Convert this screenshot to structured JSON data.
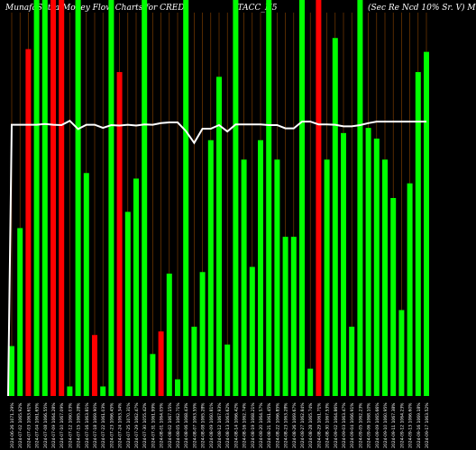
{
  "header": {
    "left": "MunafaSutra Money Flow Charts for CRED",
    "middle": "ITACC_N5",
    "right": "(Sec Re Ncd 10% Sr. V) M"
  },
  "colors": {
    "background": "#000000",
    "up": "#00ff00",
    "down": "#ff0000",
    "grid": "#8b4500",
    "price_line": "#ffffff"
  },
  "chart_data": {
    "type": "bar",
    "title": "",
    "ylim": [
      0,
      100
    ],
    "categories": [
      "2024-06-26 1071.29%",
      "2024-07-02 1065.92%",
      "2024-07-03 1063.61%",
      "2024-07-04 1061.65%",
      "2024-07-08 1066.55%",
      "2024-07-09 1064.28%",
      "2024-07-10 1067.09%",
      "2024-07-12 1060.03%",
      "2024-07-15 1065.28%",
      "2024-07-16 1063.81%",
      "2024-07-18 1069.90%",
      "2024-07-22 1061.03%",
      "2024-07-23 1066.45%",
      "2024-07-24 1063.34%",
      "2024-07-25 1070.31%",
      "2024-07-29 1062.47%",
      "2024-07-30 1055.42%",
      "2024-07-31 1061.99%",
      "2024-08-01 1064.05%",
      "2024-08-02 1067.15%",
      "2024-08-05 1062.71%",
      "2024-08-06 1068.43%",
      "2024-08-07 1063.55%",
      "2024-08-08 1065.28%",
      "2024-08-09 1060.81%",
      "2024-08-12 1067.93%",
      "2024-08-13 1063.62%",
      "2024-08-14 1066.42%",
      "2024-08-16 1062.74%",
      "2024-08-19 1068.21%",
      "2024-08-20 1064.57%",
      "2024-08-21 1061.45%",
      "2024-08-22 1066.85%",
      "2024-08-23 1063.28%",
      "2024-08-26 1069.67%",
      "2024-08-27 1062.84%",
      "2024-08-28 1065.74%",
      "2024-08-29 1061.71%",
      "2024-08-30 1067.53%",
      "2024-09-02 1064.86%",
      "2024-09-03 1063.47%",
      "2024-09-04 1066.91%",
      "2024-09-05 1062.23%",
      "2024-09-06 1068.10%",
      "2024-09-09 1065.66%",
      "2024-09-10 1060.95%",
      "2024-09-11 1067.38%",
      "2024-09-12 1064.23%",
      "2024-09-13 1066.60%",
      "2024-09-16 1069.18%",
      "2024-09-17 1063.52%"
    ],
    "series": [
      {
        "values": [
          12.6,
          42.4,
          87.6,
          100,
          100,
          100,
          100,
          2.4,
          100,
          56.3,
          15.4,
          2.4,
          100,
          81.8,
          46.5,
          54.9,
          100,
          10.6,
          16.3,
          30.9,
          4.2,
          100,
          17.5,
          31.3,
          64.6,
          80.6,
          13,
          100,
          59.7,
          32.6,
          64.6,
          100,
          59.7,
          40.2,
          40.2,
          100,
          6.9,
          100,
          59.7,
          90.4,
          66.4,
          17.5,
          100,
          67.7,
          65,
          59.7,
          50,
          21.7,
          53.7,
          81.8,
          86.9
        ],
        "colors": [
          "up",
          "up",
          "down",
          "up",
          "up",
          "down",
          "down",
          "up",
          "up",
          "up",
          "down",
          "up",
          "up",
          "down",
          "up",
          "up",
          "up",
          "up",
          "down",
          "up",
          "up",
          "up",
          "up",
          "up",
          "up",
          "up",
          "up",
          "up",
          "up",
          "up",
          "up",
          "up",
          "up",
          "up",
          "up",
          "up",
          "up",
          "down",
          "up",
          "up",
          "up",
          "up",
          "up",
          "up",
          "up",
          "up",
          "up",
          "up",
          "up",
          "up",
          "up"
        ]
      }
    ],
    "price_line": [
      68.5,
      68.5,
      68.5,
      68.5,
      68.7,
      68.5,
      68.4,
      69.5,
      67.4,
      68.5,
      68.5,
      67.7,
      68.4,
      68.3,
      68.5,
      68.3,
      68.6,
      68.5,
      68.9,
      69.1,
      69.1,
      66.9,
      63.9,
      67.5,
      67.5,
      68.4,
      66.8,
      68.6,
      68.6,
      68.6,
      68.6,
      68.4,
      68.4,
      67.6,
      67.6,
      69.3,
      69.3,
      68.6,
      68.6,
      68.5,
      68.1,
      68.1,
      68.4,
      68.9,
      69.3,
      69.3,
      69.3,
      69.3,
      69.3,
      69.3,
      69.3
    ]
  }
}
